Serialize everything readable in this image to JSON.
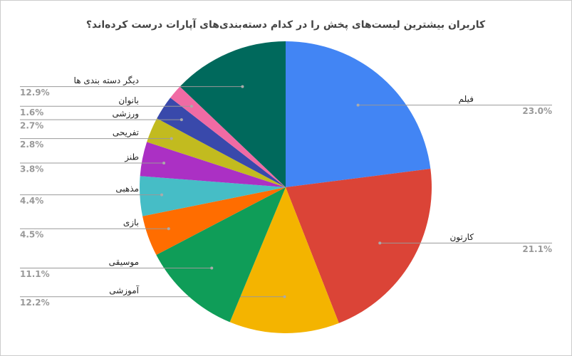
{
  "chart_data": {
    "type": "pie",
    "title": "کاربران بیشترین لیست‌های پخش را در کدام دسته‌بندی‌های آپارات درست کرده‌اند؟",
    "categories": [
      "فیلم",
      "کارتون",
      "آموزشی",
      "موسیقی",
      "بازی",
      "مذهبی",
      "طنز",
      "تفریحی",
      "ورزشی",
      "بانوان",
      "دیگر دسته بندی ها"
    ],
    "values": [
      23.0,
      21.1,
      12.2,
      11.1,
      4.5,
      4.4,
      3.8,
      2.8,
      2.7,
      1.6,
      12.9
    ],
    "value_labels": [
      "23.0%",
      "21.1%",
      "12.2%",
      "11.1%",
      "4.5%",
      "4.4%",
      "3.8%",
      "2.8%",
      "2.7%",
      "1.6%",
      "12.9%"
    ],
    "colors": [
      "#4285f4",
      "#db4437",
      "#f4b400",
      "#0f9d58",
      "#ff6d00",
      "#46bdc6",
      "#ab30c4",
      "#c2bb1f",
      "#3949ab",
      "#f06ba4",
      "#00695c"
    ]
  }
}
